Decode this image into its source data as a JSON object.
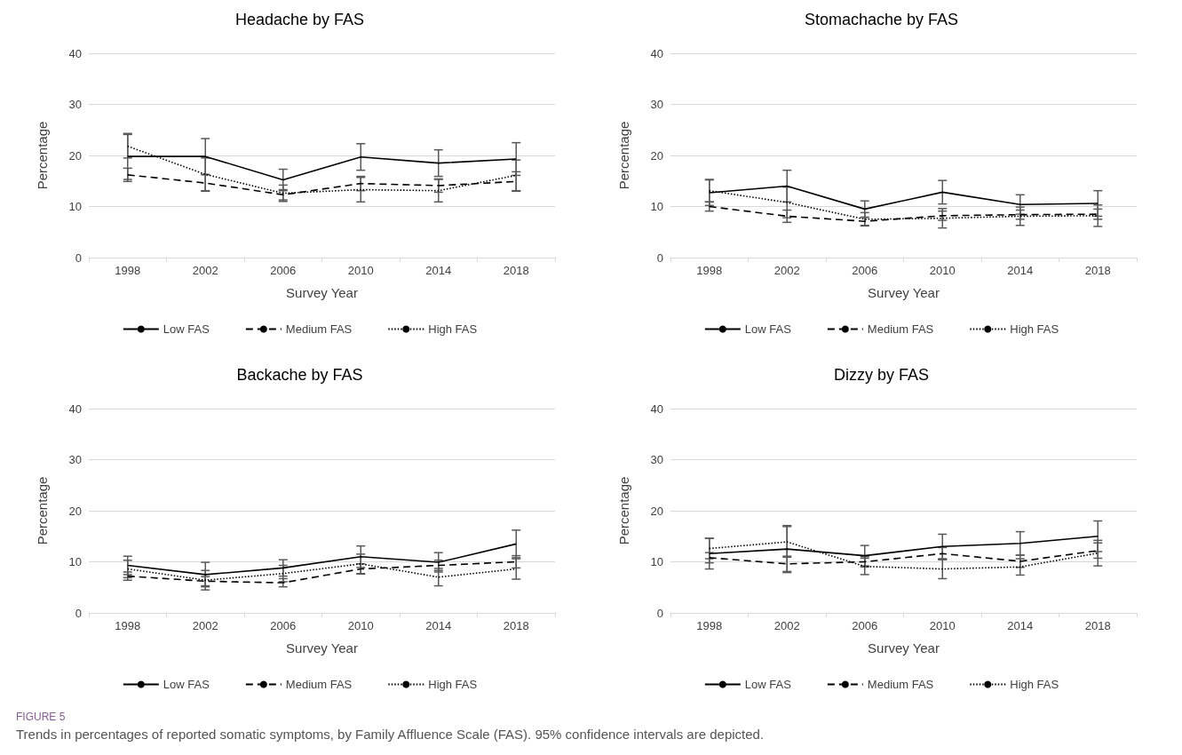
{
  "chart_data": [
    {
      "type": "line",
      "title": "Headache by FAS",
      "xlabel": "Survey Year",
      "ylabel": "Percentage",
      "categories": [
        "1998",
        "2002",
        "2006",
        "2010",
        "2014",
        "2018"
      ],
      "ylim": [
        0,
        40
      ],
      "yticks": [
        0,
        10,
        20,
        30,
        40
      ],
      "grid": "y",
      "legend": "bottom",
      "series": [
        {
          "name": "Low FAS",
          "color": "#000000",
          "line_style": "solid",
          "values": [
            19.8,
            19.8,
            15.2,
            19.7,
            18.5,
            19.3
          ],
          "errors": [
            4.5,
            3.5,
            2.1,
            2.6,
            2.6,
            3.2
          ]
        },
        {
          "name": "Medium FAS",
          "color": "#000000",
          "line_style": "dashed",
          "values": [
            16.2,
            14.6,
            12.3,
            14.5,
            14.1,
            14.9
          ],
          "errors": [
            1.3,
            1.6,
            1.0,
            1.4,
            1.3,
            1.9
          ]
        },
        {
          "name": "High FAS",
          "color": "#000000",
          "line_style": "dotted",
          "values": [
            21.8,
            16.3,
            12.6,
            13.3,
            13.1,
            16.1
          ],
          "errors": [
            2.3,
            3.2,
            1.6,
            2.4,
            2.2,
            3.0
          ]
        }
      ]
    },
    {
      "type": "line",
      "title": "Stomachache by FAS",
      "xlabel": "Survey Year",
      "ylabel": "Percentage",
      "categories": [
        "1998",
        "2002",
        "2006",
        "2010",
        "2014",
        "2018"
      ],
      "ylim": [
        0,
        40
      ],
      "yticks": [
        0,
        10,
        20,
        30,
        40
      ],
      "grid": "y",
      "legend": "bottom",
      "series": [
        {
          "name": "Low FAS",
          "color": "#000000",
          "line_style": "solid",
          "values": [
            12.7,
            14.0,
            9.5,
            12.8,
            10.4,
            10.6
          ],
          "errors": [
            2.5,
            3.1,
            1.6,
            2.3,
            1.9,
            2.5
          ]
        },
        {
          "name": "Medium FAS",
          "color": "#000000",
          "line_style": "dashed",
          "values": [
            10.0,
            8.1,
            7.1,
            8.2,
            8.4,
            8.5
          ],
          "errors": [
            0.9,
            1.2,
            0.8,
            0.9,
            0.9,
            1.0
          ]
        },
        {
          "name": "High FAS",
          "color": "#000000",
          "line_style": "dotted",
          "values": [
            13.1,
            10.8,
            7.5,
            7.7,
            8.1,
            8.2
          ],
          "errors": [
            2.2,
            3.0,
            1.3,
            1.9,
            1.8,
            2.1
          ]
        }
      ]
    },
    {
      "type": "line",
      "title": "Backache by FAS",
      "xlabel": "Survey Year",
      "ylabel": "Percentage",
      "categories": [
        "1998",
        "2002",
        "2006",
        "2010",
        "2014",
        "2018"
      ],
      "ylim": [
        0,
        40
      ],
      "yticks": [
        0,
        10,
        20,
        30,
        40
      ],
      "grid": "y",
      "legend": "bottom",
      "series": [
        {
          "name": "Low FAS",
          "color": "#000000",
          "line_style": "solid",
          "values": [
            9.3,
            7.5,
            8.8,
            11.0,
            9.9,
            13.5
          ],
          "errors": [
            1.8,
            2.4,
            1.6,
            2.1,
            1.9,
            2.7
          ]
        },
        {
          "name": "Medium FAS",
          "color": "#000000",
          "line_style": "dashed",
          "values": [
            7.2,
            6.2,
            5.9,
            8.6,
            9.3,
            10.0
          ],
          "errors": [
            0.8,
            0.9,
            0.8,
            1.0,
            1.0,
            1.2
          ]
        },
        {
          "name": "High FAS",
          "color": "#000000",
          "line_style": "dotted",
          "values": [
            8.6,
            6.4,
            7.7,
            9.6,
            7.0,
            8.6
          ],
          "errors": [
            1.7,
            1.9,
            1.6,
            1.9,
            1.7,
            2.0
          ]
        }
      ]
    },
    {
      "type": "line",
      "title": "Dizzy by FAS",
      "xlabel": "Survey Year",
      "ylabel": "Percentage",
      "categories": [
        "1998",
        "2002",
        "2006",
        "2010",
        "2014",
        "2018"
      ],
      "ylim": [
        0,
        40
      ],
      "yticks": [
        0,
        10,
        20,
        30,
        40
      ],
      "grid": "y",
      "legend": "bottom",
      "annotations": [
        "FIGURE 5",
        "Trends in percentages of reported somatic symptoms, by Family Affluence Scale (FAS). 95% confidence intervals are depicted."
      ],
      "series": [
        {
          "name": "Low FAS",
          "color": "#000000",
          "line_style": "solid",
          "values": [
            11.6,
            12.5,
            11.2,
            13.0,
            13.6,
            15.0
          ],
          "errors": [
            3.0,
            4.6,
            2.0,
            2.4,
            2.3,
            3.0
          ]
        },
        {
          "name": "Medium FAS",
          "color": "#000000",
          "line_style": "dashed",
          "values": [
            10.8,
            9.6,
            10.0,
            11.6,
            10.1,
            12.2
          ],
          "errors": [
            1.0,
            1.5,
            1.0,
            1.2,
            1.2,
            1.5
          ]
        },
        {
          "name": "High FAS",
          "color": "#000000",
          "line_style": "dotted",
          "values": [
            12.6,
            13.9,
            9.1,
            8.6,
            9.0,
            11.7
          ],
          "errors": [
            2.0,
            3.0,
            1.6,
            1.9,
            1.6,
            2.5
          ]
        }
      ]
    }
  ]
}
